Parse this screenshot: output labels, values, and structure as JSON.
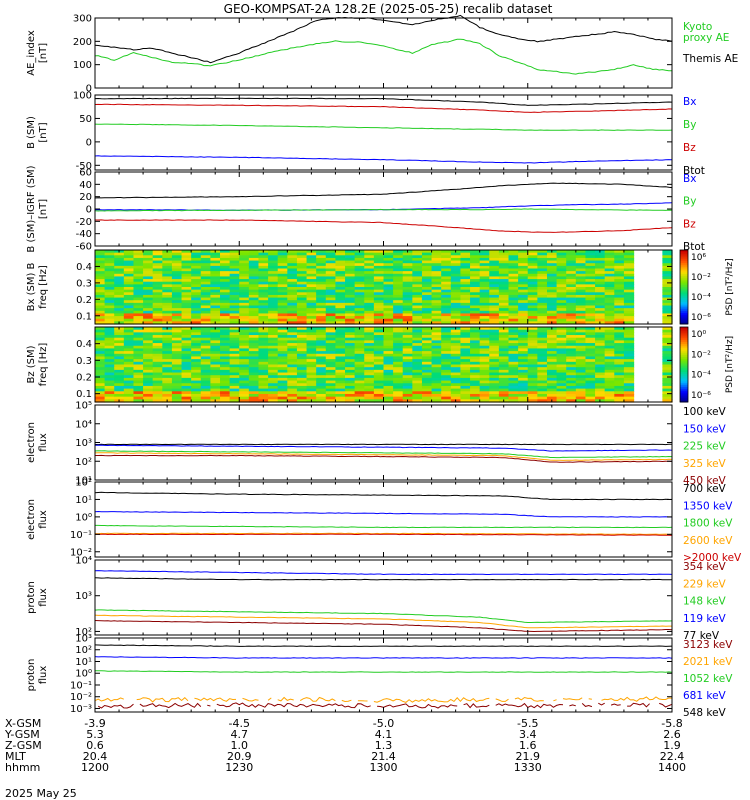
{
  "title": "GEO-KOMPSAT-2A 128.2E (2025-05-25) recalib dataset",
  "date_label": "2025 May 25",
  "colors": {
    "black": "#000000",
    "green": "#22cc22",
    "blue": "#0000ff",
    "red": "#cc0000",
    "orange": "#ffa500",
    "darkred": "#8b0000",
    "cyan": "#00aaff"
  },
  "chart_data": [
    {
      "type": "line",
      "id": "ae",
      "ylabel": "AE_index\n[nT]",
      "ylim": [
        0,
        300
      ],
      "yticks": [
        "0",
        "100",
        "200",
        "300"
      ],
      "ytick_vals": [
        0,
        100,
        200,
        300
      ],
      "xlim": [
        0,
        120
      ],
      "series": [
        {
          "name": "Kyoto\nproxy AE",
          "color": "#22cc22",
          "x": [
            0,
            4,
            8,
            12,
            16,
            20,
            24,
            30,
            36,
            42,
            46,
            50,
            56,
            62,
            66,
            70,
            76,
            80,
            84,
            88,
            92,
            96,
            100,
            104,
            108,
            112,
            116,
            120
          ],
          "y": [
            140,
            120,
            150,
            130,
            110,
            105,
            95,
            120,
            150,
            175,
            190,
            200,
            195,
            170,
            150,
            185,
            210,
            190,
            140,
            110,
            80,
            70,
            60,
            70,
            80,
            100,
            80,
            75
          ]
        },
        {
          "name": "Themis AE",
          "color": "#000000",
          "x": [
            0,
            4,
            8,
            12,
            16,
            20,
            24,
            30,
            36,
            42,
            46,
            50,
            56,
            62,
            66,
            70,
            76,
            80,
            84,
            88,
            92,
            96,
            100,
            104,
            108,
            112,
            116,
            120
          ],
          "y": [
            185,
            175,
            165,
            170,
            150,
            130,
            110,
            150,
            200,
            250,
            290,
            300,
            300,
            285,
            270,
            290,
            310,
            260,
            230,
            210,
            200,
            210,
            220,
            230,
            240,
            230,
            210,
            200
          ]
        }
      ]
    },
    {
      "type": "line",
      "id": "bsm",
      "ylabel": "B (SM)\n[nT]",
      "ylim": [
        -60,
        100
      ],
      "yticks": [
        "-50",
        "0",
        "50",
        "100"
      ],
      "ytick_vals": [
        -50,
        0,
        50,
        100
      ],
      "xlim": [
        0,
        120
      ],
      "series": [
        {
          "name": "Bx",
          "color": "#0000ff",
          "x": [
            0,
            30,
            60,
            80,
            90,
            100,
            120
          ],
          "y": [
            -30,
            -33,
            -38,
            -43,
            -45,
            -42,
            -38
          ]
        },
        {
          "name": "By",
          "color": "#22cc22",
          "x": [
            0,
            30,
            60,
            80,
            90,
            100,
            120
          ],
          "y": [
            38,
            35,
            30,
            27,
            25,
            25,
            25
          ]
        },
        {
          "name": "Bz",
          "color": "#cc0000",
          "x": [
            0,
            30,
            60,
            80,
            90,
            100,
            120
          ],
          "y": [
            80,
            78,
            75,
            68,
            63,
            65,
            70
          ]
        },
        {
          "name": "Btot",
          "color": "#000000",
          "x": [
            0,
            30,
            60,
            80,
            90,
            100,
            120
          ],
          "y": [
            92,
            93,
            92,
            85,
            78,
            80,
            85
          ]
        }
      ]
    },
    {
      "type": "line",
      "id": "bigrf",
      "ylabel": "B (SM)–IGRF (SM)\n[nT]",
      "ylim": [
        -60,
        60
      ],
      "yticks": [
        "-60",
        "-40",
        "-20",
        "0",
        "20",
        "40",
        "60"
      ],
      "ytick_vals": [
        -60,
        -40,
        -20,
        0,
        20,
        40,
        60
      ],
      "xlim": [
        0,
        120
      ],
      "series": [
        {
          "name": "Bx",
          "color": "#0000ff",
          "x": [
            0,
            30,
            60,
            80,
            90,
            100,
            110,
            120
          ],
          "y": [
            -1,
            -2,
            -1,
            2,
            5,
            7,
            8,
            10
          ]
        },
        {
          "name": "By",
          "color": "#22cc22",
          "x": [
            0,
            30,
            60,
            80,
            90,
            100,
            120
          ],
          "y": [
            -3,
            -2,
            -1,
            -1,
            0,
            -1,
            -2
          ]
        },
        {
          "name": "Bz",
          "color": "#cc0000",
          "x": [
            0,
            30,
            60,
            75,
            85,
            95,
            110,
            120
          ],
          "y": [
            -18,
            -18,
            -22,
            -30,
            -36,
            -38,
            -35,
            -30
          ]
        },
        {
          "name": "Btot",
          "color": "#000000",
          "x": [
            0,
            30,
            60,
            75,
            85,
            95,
            110,
            120
          ],
          "y": [
            18,
            20,
            24,
            32,
            38,
            42,
            40,
            35
          ]
        }
      ]
    },
    {
      "type": "heatmap",
      "id": "bxpsd",
      "ylabel": "Bx (SM) B\nfreq [Hz]",
      "ylim": [
        0.05,
        0.5
      ],
      "yticks": [
        "0.1",
        "0.2",
        "0.3",
        "0.4"
      ],
      "ytick_vals": [
        0.1,
        0.2,
        0.3,
        0.4
      ],
      "colorbar_label": "PSD [nT²/Hz]",
      "colorbar_ticks": [
        "10⁶",
        "10⁻²",
        "10⁻⁴",
        "10⁻⁶"
      ]
    },
    {
      "type": "heatmap",
      "id": "bzpsd",
      "ylabel": "Bz (SM)\nfreq [Hz]",
      "ylim": [
        0.05,
        0.5
      ],
      "yticks": [
        "0.1",
        "0.2",
        "0.3",
        "0.4"
      ],
      "ytick_vals": [
        0.1,
        0.2,
        0.3,
        0.4
      ],
      "colorbar_label": "PSD [nT²/Hz]",
      "colorbar_ticks": [
        "10⁰",
        "10⁻²",
        "10⁻⁴",
        "10⁻⁶"
      ]
    },
    {
      "type": "line",
      "id": "elo",
      "log": true,
      "ylabel": "electron\nflux",
      "ylim": [
        1,
        5
      ],
      "yticks": [
        "10¹",
        "10²",
        "10³",
        "10⁴",
        "10⁵"
      ],
      "ytick_vals": [
        1,
        2,
        3,
        4,
        5
      ],
      "xlim": [
        0,
        120
      ],
      "series": [
        {
          "name": "100 keV",
          "color": "#000000",
          "x": [
            0,
            120
          ],
          "y": [
            2.9,
            2.9
          ]
        },
        {
          "name": "150 keV",
          "color": "#0000ff",
          "x": [
            0,
            30,
            60,
            85,
            95,
            120
          ],
          "y": [
            2.85,
            2.8,
            2.75,
            2.7,
            2.55,
            2.6
          ]
        },
        {
          "name": "225 keV",
          "color": "#22cc22",
          "x": [
            0,
            30,
            60,
            85,
            95,
            120
          ],
          "y": [
            2.55,
            2.5,
            2.45,
            2.4,
            2.2,
            2.25
          ]
        },
        {
          "name": "325 keV",
          "color": "#ffa500",
          "x": [
            0,
            30,
            60,
            85,
            95,
            120
          ],
          "y": [
            2.45,
            2.4,
            2.35,
            2.3,
            2.05,
            2.1
          ]
        },
        {
          "name": "450 keV",
          "color": "#8b0000",
          "x": [
            0,
            30,
            60,
            85,
            95,
            120
          ],
          "y": [
            2.3,
            2.3,
            2.25,
            2.2,
            1.95,
            2.0
          ]
        }
      ]
    },
    {
      "type": "line",
      "id": "ehi",
      "log": true,
      "ylabel": "electron\nflux",
      "ylim": [
        -2.3,
        2
      ],
      "yticks": [
        "10⁻²",
        "10⁻¹",
        "10⁰",
        "10¹",
        "10²"
      ],
      "ytick_vals": [
        -2,
        -1,
        0,
        1,
        2
      ],
      "xlim": [
        0,
        120
      ],
      "series": [
        {
          "name": "700 keV",
          "color": "#000000",
          "x": [
            0,
            30,
            60,
            85,
            95,
            120
          ],
          "y": [
            1.4,
            1.3,
            1.25,
            1.2,
            1.0,
            1.0
          ]
        },
        {
          "name": "1350 keV",
          "color": "#0000ff",
          "x": [
            0,
            30,
            60,
            85,
            95,
            120
          ],
          "y": [
            0.3,
            0.25,
            0.2,
            0.15,
            0.0,
            0.0
          ]
        },
        {
          "name": "1800 keV",
          "color": "#22cc22",
          "x": [
            0,
            30,
            60,
            120
          ],
          "y": [
            -0.5,
            -0.55,
            -0.6,
            -0.6
          ]
        },
        {
          "name": "2600 keV",
          "color": "#ffa500",
          "x": [
            0,
            30,
            60,
            120
          ],
          "y": [
            -0.95,
            -0.95,
            -0.95,
            -1.0
          ]
        },
        {
          "name": ">2000 keV",
          "color": "#cc0000",
          "x": [
            0,
            30,
            60,
            120
          ],
          "y": [
            -1.0,
            -1.0,
            -1.0,
            -1.05
          ]
        }
      ]
    },
    {
      "type": "line",
      "id": "plo",
      "log": true,
      "ylabel": "proton\nflux",
      "ylim": [
        1.9,
        4
      ],
      "yticks": [
        "10²",
        "10³",
        "10⁴"
      ],
      "ytick_vals": [
        2,
        3,
        4
      ],
      "xlim": [
        0,
        120
      ],
      "series": [
        {
          "name": "354 keV",
          "color": "#8b0000",
          "x": [
            0,
            30,
            60,
            80,
            90,
            120
          ],
          "y": [
            2.3,
            2.25,
            2.2,
            2.1,
            2.0,
            2.05
          ]
        },
        {
          "name": "229 keV",
          "color": "#ffa500",
          "x": [
            0,
            30,
            60,
            80,
            90,
            120
          ],
          "y": [
            2.45,
            2.4,
            2.35,
            2.25,
            2.1,
            2.15
          ]
        },
        {
          "name": "148 keV",
          "color": "#22cc22",
          "x": [
            0,
            30,
            60,
            80,
            90,
            120
          ],
          "y": [
            2.6,
            2.55,
            2.5,
            2.4,
            2.25,
            2.3
          ]
        },
        {
          "name": "119 keV",
          "color": "#0000ff",
          "x": [
            0,
            30,
            60,
            120
          ],
          "y": [
            3.7,
            3.65,
            3.6,
            3.6
          ]
        },
        {
          "name": "77 keV",
          "color": "#000000",
          "x": [
            0,
            30,
            60,
            120
          ],
          "y": [
            3.5,
            3.45,
            3.45,
            3.45
          ]
        }
      ]
    },
    {
      "type": "line",
      "id": "phi",
      "log": true,
      "ylabel": "proton\nflux",
      "ylim": [
        -3.3,
        3
      ],
      "yticks": [
        "10⁻³",
        "10⁻²",
        "10⁻¹",
        "10⁰",
        "10¹",
        "10²",
        "10³"
      ],
      "ytick_vals": [
        -3,
        -2,
        -1,
        0,
        1,
        2,
        3
      ],
      "xlim": [
        0,
        120
      ],
      "series": [
        {
          "name": "3123 keV",
          "color": "#8b0000",
          "x": [
            0,
            30,
            60,
            120
          ],
          "y": [
            -2.8,
            -2.7,
            -2.8,
            -2.7
          ]
        },
        {
          "name": "2021 keV",
          "color": "#ffa500",
          "x": [
            0,
            30,
            60,
            120
          ],
          "y": [
            -2.3,
            -2.2,
            -2.3,
            -2.2
          ]
        },
        {
          "name": "1052 keV",
          "color": "#22cc22",
          "x": [
            0,
            30,
            60,
            120
          ],
          "y": [
            0.2,
            0.1,
            0.1,
            0.1
          ]
        },
        {
          "name": "681 keV",
          "color": "#0000ff",
          "x": [
            0,
            30,
            60,
            120
          ],
          "y": [
            1.4,
            1.3,
            1.3,
            1.3
          ]
        },
        {
          "name": "548 keV",
          "color": "#000000",
          "x": [
            0,
            30,
            60,
            120
          ],
          "y": [
            2.4,
            2.3,
            2.3,
            2.3
          ]
        }
      ]
    }
  ],
  "x_axis": {
    "row_labels": [
      "X-GSM",
      "Y-GSM",
      "Z-GSM",
      "MLT",
      "hhmm"
    ],
    "ticks": [
      {
        "vals": [
          "-3.9",
          "5.3",
          "0.6",
          "20.4",
          "1200"
        ]
      },
      {
        "vals": [
          "-4.5",
          "4.7",
          "1.0",
          "20.9",
          "1230"
        ]
      },
      {
        "vals": [
          "-5.0",
          "4.1",
          "1.3",
          "21.4",
          "1300"
        ]
      },
      {
        "vals": [
          "-5.5",
          "3.4",
          "1.6",
          "21.9",
          "1330"
        ]
      },
      {
        "vals": [
          "-5.8",
          "2.6",
          "1.9",
          "22.4",
          "1400"
        ]
      }
    ]
  }
}
